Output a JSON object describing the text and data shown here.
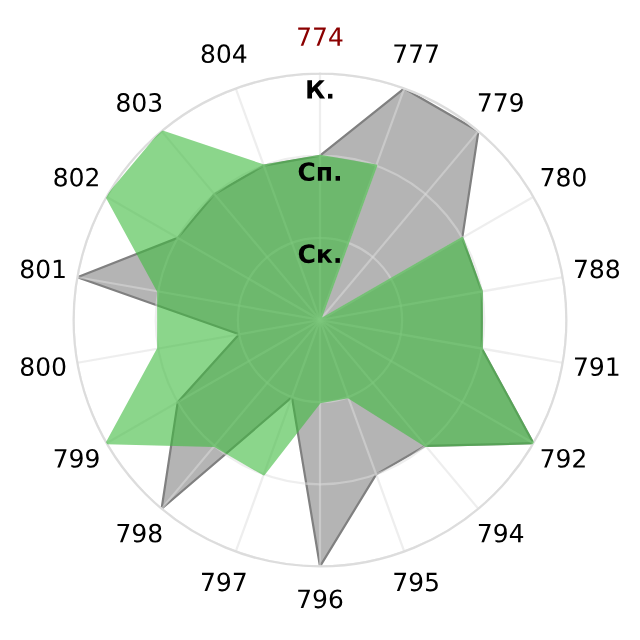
{
  "chart_data": {
    "type": "radar",
    "categories": [
      "774",
      "777",
      "779",
      "780",
      "788",
      "791",
      "792",
      "794",
      "795",
      "796",
      "797",
      "798",
      "799",
      "800",
      "801",
      "802",
      "803",
      "804"
    ],
    "series": [
      {
        "color": "#b4b4b4",
        "values": [
          2,
          3,
          3,
          2,
          2,
          2,
          3,
          2,
          2,
          3,
          1,
          3,
          2,
          1,
          3,
          2,
          2,
          2
        ]
      },
      {
        "color": "#3fbb3f",
        "values": [
          2,
          2,
          0,
          2,
          2,
          2,
          3,
          2,
          1,
          1,
          2,
          2,
          3,
          2,
          2,
          3,
          3,
          2
        ]
      }
    ],
    "ylim": [
      0,
      3
    ],
    "yticks": [
      {
        "value": 1,
        "label": "Ск."
      },
      {
        "value": 2,
        "label": "Сп."
      },
      {
        "value": 3,
        "label": "К."
      }
    ],
    "grid": true,
    "legend": false
  }
}
